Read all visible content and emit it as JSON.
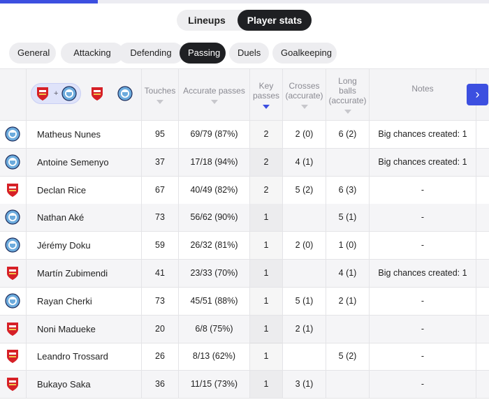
{
  "top_progress": {
    "fraction": 0.2
  },
  "view_toggle": {
    "lineups": "Lineups",
    "player_stats": "Player stats"
  },
  "filters": [
    "General",
    "Attacking",
    "Defending",
    "Passing",
    "Duels",
    "Goalkeeping"
  ],
  "active_filter": "Passing",
  "team_filter": {
    "plus": "+"
  },
  "columns": {
    "touches": "Touches",
    "accurate_passes": "Accurate passes",
    "key_passes": "Key\npasses",
    "crosses": "Crosses\n(accurate)",
    "long_balls": "Long\nballs\n(accurate)",
    "notes": "Notes"
  },
  "next_button": "›",
  "colors": {
    "accent": "#3c4fe0",
    "arsenal": "#d62027",
    "mancity": "#6cabdd"
  },
  "players": [
    {
      "team": "mancity",
      "name": "Matheus Nunes",
      "touches": "95",
      "accurate_passes": "69/79 (87%)",
      "key_passes": "2",
      "crosses": "2 (0)",
      "long_balls": "6 (2)",
      "notes": "Big chances created: 1"
    },
    {
      "team": "mancity",
      "name": "Antoine Semenyo",
      "touches": "37",
      "accurate_passes": "17/18 (94%)",
      "key_passes": "2",
      "crosses": "4 (1)",
      "long_balls": "",
      "notes": "Big chances created: 1"
    },
    {
      "team": "arsenal",
      "name": "Declan Rice",
      "touches": "67",
      "accurate_passes": "40/49 (82%)",
      "key_passes": "2",
      "crosses": "5 (2)",
      "long_balls": "6 (3)",
      "notes": "-"
    },
    {
      "team": "mancity",
      "name": "Nathan Aké",
      "touches": "73",
      "accurate_passes": "56/62 (90%)",
      "key_passes": "1",
      "crosses": "",
      "long_balls": "5 (1)",
      "notes": "-"
    },
    {
      "team": "mancity",
      "name": "Jérémy Doku",
      "touches": "59",
      "accurate_passes": "26/32 (81%)",
      "key_passes": "1",
      "crosses": "2 (0)",
      "long_balls": "1 (0)",
      "notes": "-"
    },
    {
      "team": "arsenal",
      "name": "Martín Zubimendi",
      "touches": "41",
      "accurate_passes": "23/33 (70%)",
      "key_passes": "1",
      "crosses": "",
      "long_balls": "4 (1)",
      "notes": "Big chances created: 1"
    },
    {
      "team": "mancity",
      "name": "Rayan Cherki",
      "touches": "73",
      "accurate_passes": "45/51 (88%)",
      "key_passes": "1",
      "crosses": "5 (1)",
      "long_balls": "2 (1)",
      "notes": "-"
    },
    {
      "team": "arsenal",
      "name": "Noni Madueke",
      "touches": "20",
      "accurate_passes": "6/8 (75%)",
      "key_passes": "1",
      "crosses": "2 (1)",
      "long_balls": "",
      "notes": "-"
    },
    {
      "team": "arsenal",
      "name": "Leandro Trossard",
      "touches": "26",
      "accurate_passes": "8/13 (62%)",
      "key_passes": "1",
      "crosses": "",
      "long_balls": "5 (2)",
      "notes": "-"
    },
    {
      "team": "arsenal",
      "name": "Bukayo Saka",
      "touches": "36",
      "accurate_passes": "11/15 (73%)",
      "key_passes": "1",
      "crosses": "3 (1)",
      "long_balls": "",
      "notes": "-"
    }
  ]
}
